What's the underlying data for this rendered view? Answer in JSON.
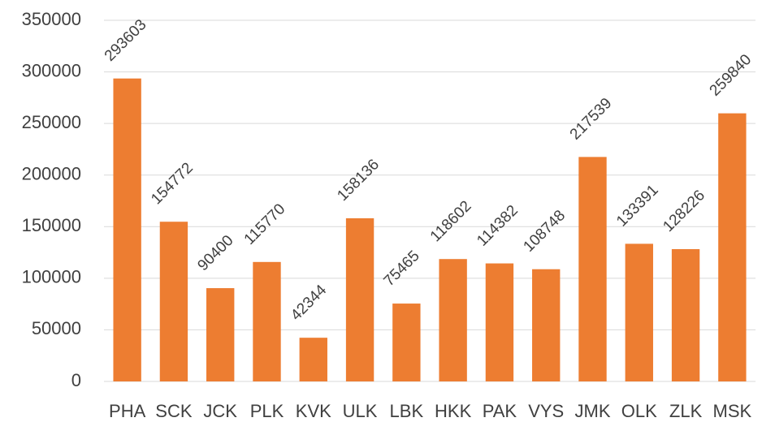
{
  "chart_data": {
    "type": "bar",
    "categories": [
      "PHA",
      "SCK",
      "JCK",
      "PLK",
      "KVK",
      "ULK",
      "LBK",
      "HKK",
      "PAK",
      "VYS",
      "JMK",
      "OLK",
      "ZLK",
      "MSK"
    ],
    "values": [
      293603,
      154772,
      90400,
      115770,
      42344,
      158136,
      75465,
      118602,
      114382,
      108748,
      217539,
      133391,
      128226,
      259840
    ],
    "color": "#ed7d31",
    "ylim": [
      0,
      350000
    ],
    "yticks": [
      0,
      50000,
      100000,
      150000,
      200000,
      250000,
      300000,
      350000
    ],
    "grid": true,
    "data_labels": true
  }
}
